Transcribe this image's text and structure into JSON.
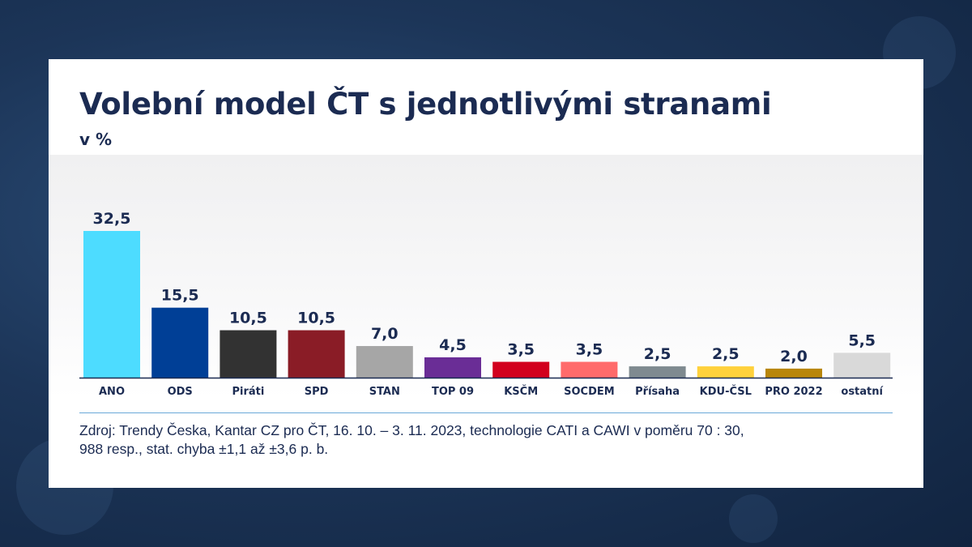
{
  "title": "Volební model ČT s jednotlivými stranami",
  "subtitle": "v %",
  "source_line1": "Zdroj: Trendy Česka, Kantar CZ pro ČT, 16. 10. – 3. 11. 2023, technologie CATI a CAWI v poměru 70 : 30,",
  "source_line2": "988 resp., stat. chyba ±1,1 až ±3,6 p. b.",
  "chart_data": {
    "type": "bar",
    "title": "Volební model ČT s jednotlivými stranami",
    "subtitle": "v %",
    "xlabel": "",
    "ylabel": "",
    "categories": [
      "ANO",
      "ODS",
      "Piráti",
      "SPD",
      "STAN",
      "TOP 09",
      "KSČM",
      "SOCDEM",
      "Přísaha",
      "KDU-ČSL",
      "PRO 2022",
      "ostatní"
    ],
    "values": [
      32.5,
      15.5,
      10.5,
      10.5,
      7.0,
      4.5,
      3.5,
      3.5,
      2.5,
      2.5,
      2.0,
      5.5
    ],
    "value_labels": [
      "32,5",
      "15,5",
      "10,5",
      "10,5",
      "7,0",
      "4,5",
      "3,5",
      "3,5",
      "2,5",
      "2,5",
      "2,0",
      "5,5"
    ],
    "colors": [
      "#4ddcff",
      "#003f96",
      "#323232",
      "#8a1c26",
      "#a6a6a6",
      "#6a2d96",
      "#d2001e",
      "#ff6b6b",
      "#7f8a90",
      "#ffd13c",
      "#b8860b",
      "#d9d9d9"
    ],
    "ylim": [
      0,
      35
    ],
    "grid": false,
    "legend": "none"
  }
}
